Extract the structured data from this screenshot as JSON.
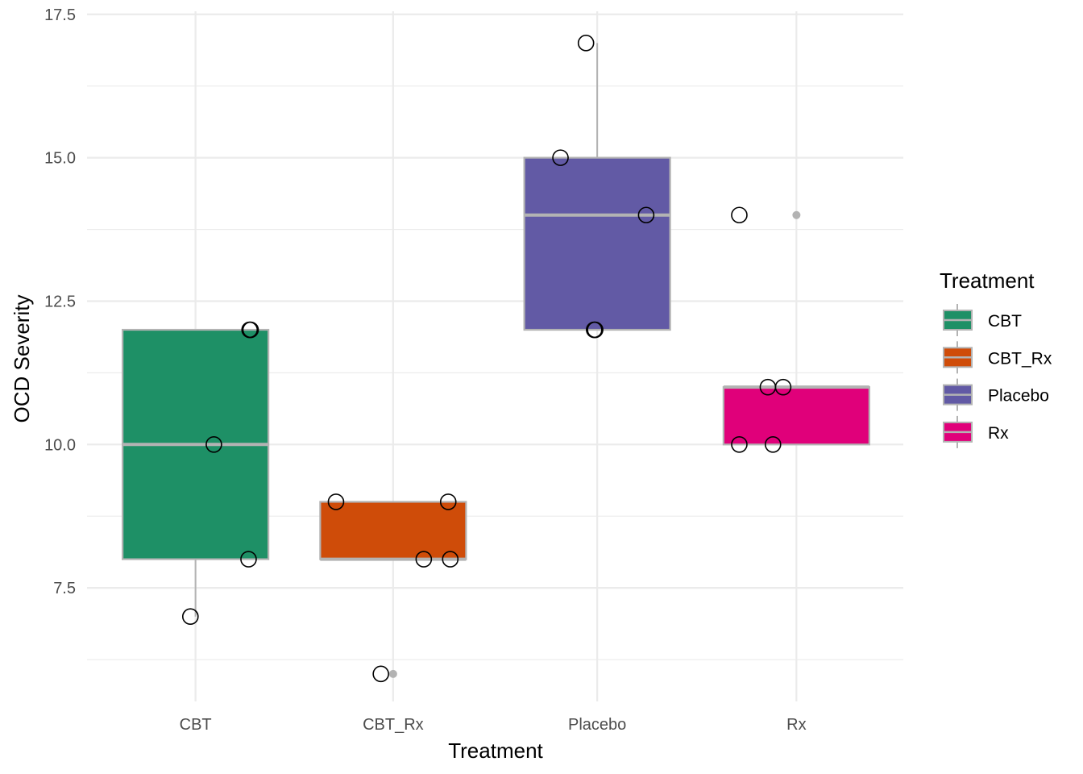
{
  "chart_data": {
    "type": "boxplot",
    "title": "",
    "xlabel": "Treatment",
    "ylabel": "OCD Severity",
    "ylim": [
      5.52,
      17.75
    ],
    "yticks": [
      "7.5",
      "10.0",
      "12.5",
      "15.0",
      "17.5"
    ],
    "ytick_values": [
      7.5,
      10.0,
      12.5,
      15.0,
      17.5
    ],
    "grid": true,
    "categories": [
      "CBT",
      "CBT_Rx",
      "Placebo",
      "Rx"
    ],
    "colors": [
      "#1e9066",
      "#cf4c09",
      "#625aa5",
      "#e0007a"
    ],
    "boxes": [
      {
        "q1": 8,
        "median": 10,
        "q3": 12,
        "whisker_low": 7,
        "whisker_high": 12,
        "outliers": []
      },
      {
        "q1": 8,
        "median": 8,
        "q3": 9,
        "whisker_low": 8,
        "whisker_high": 9,
        "outliers": [
          6
        ]
      },
      {
        "q1": 12,
        "median": 14,
        "q3": 15,
        "whisker_low": 12,
        "whisker_high": 17,
        "outliers": []
      },
      {
        "q1": 10,
        "median": 11,
        "q3": 11,
        "whisker_low": 10,
        "whisker_high": 11,
        "outliers": [
          14
        ]
      }
    ],
    "points": [
      {
        "category": 0,
        "jitter": -0.025,
        "y": 7
      },
      {
        "category": 0,
        "jitter": 0.09,
        "y": 10
      },
      {
        "category": 0,
        "jitter": 0.26,
        "y": 8
      },
      {
        "category": 0,
        "jitter": 0.27,
        "y": 12
      },
      {
        "category": 0,
        "jitter": 0.265,
        "y": 12
      },
      {
        "category": 1,
        "jitter": -0.28,
        "y": 9
      },
      {
        "category": 1,
        "jitter": 0.27,
        "y": 9
      },
      {
        "category": 1,
        "jitter": 0.15,
        "y": 8
      },
      {
        "category": 1,
        "jitter": 0.28,
        "y": 8
      },
      {
        "category": 1,
        "jitter": -0.06,
        "y": 6
      },
      {
        "category": 2,
        "jitter": -0.055,
        "y": 17
      },
      {
        "category": 2,
        "jitter": -0.18,
        "y": 15
      },
      {
        "category": 2,
        "jitter": 0.24,
        "y": 14
      },
      {
        "category": 2,
        "jitter": -0.015,
        "y": 12
      },
      {
        "category": 2,
        "jitter": -0.01,
        "y": 12
      },
      {
        "category": 3,
        "jitter": -0.28,
        "y": 14
      },
      {
        "category": 3,
        "jitter": -0.14,
        "y": 11
      },
      {
        "category": 3,
        "jitter": -0.065,
        "y": 11
      },
      {
        "category": 3,
        "jitter": -0.28,
        "y": 10
      },
      {
        "category": 3,
        "jitter": -0.115,
        "y": 10
      }
    ],
    "legend": {
      "title": "Treatment",
      "entries": [
        "CBT",
        "CBT_Rx",
        "Placebo",
        "Rx"
      ],
      "placement": "right"
    }
  }
}
